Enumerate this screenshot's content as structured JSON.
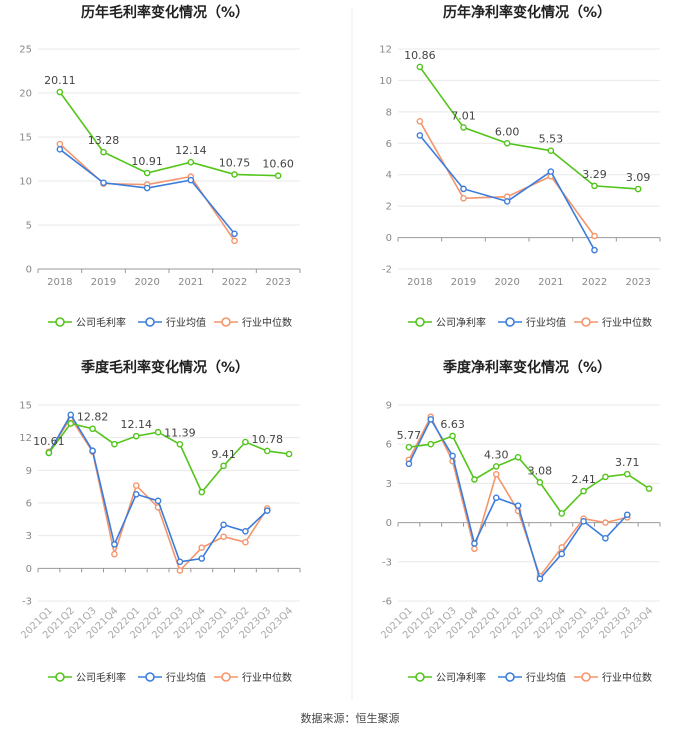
{
  "source_note": "数据来源：恒生聚源",
  "colors": {
    "company": "#52c41a",
    "industry_avg": "#3b7ddd",
    "industry_median": "#f4956c",
    "axis": "#888888",
    "grid": "#e8e8e8",
    "title": "#222222",
    "label": "#444444"
  },
  "chart_data": [
    {
      "type": "line",
      "title": "历年毛利率变化情况（%）",
      "categories": [
        "2018",
        "2019",
        "2020",
        "2021",
        "2022",
        "2023"
      ],
      "ylim": [
        0,
        25
      ],
      "yticks": [
        0,
        5,
        10,
        15,
        20,
        25
      ],
      "series": [
        {
          "name": "公司毛利率",
          "color_key": "company",
          "values": [
            20.11,
            13.28,
            10.91,
            12.14,
            10.75,
            10.6
          ],
          "data_labels": [
            "20.11",
            "13.28",
            "10.91",
            "12.14",
            "10.75",
            "10.60"
          ]
        },
        {
          "name": "行业均值",
          "color_key": "industry_avg",
          "values": [
            13.6,
            9.8,
            9.2,
            10.1,
            4.0,
            null
          ]
        },
        {
          "name": "行业中位数",
          "color_key": "industry_median",
          "values": [
            14.2,
            9.7,
            9.6,
            10.5,
            3.2,
            null
          ]
        }
      ]
    },
    {
      "type": "line",
      "title": "历年净利率变化情况（%）",
      "categories": [
        "2018",
        "2019",
        "2020",
        "2021",
        "2022",
        "2023"
      ],
      "ylim": [
        -2,
        12
      ],
      "yticks": [
        -2,
        0,
        2,
        4,
        6,
        8,
        10,
        12
      ],
      "series": [
        {
          "name": "公司净利率",
          "color_key": "company",
          "values": [
            10.86,
            7.01,
            6.0,
            5.53,
            3.29,
            3.09
          ],
          "data_labels": [
            "10.86",
            "7.01",
            "6.00",
            "5.53",
            "3.29",
            "3.09"
          ]
        },
        {
          "name": "行业均值",
          "color_key": "industry_avg",
          "values": [
            6.5,
            3.1,
            2.3,
            4.2,
            -0.8,
            null
          ]
        },
        {
          "name": "行业中位数",
          "color_key": "industry_median",
          "values": [
            7.4,
            2.5,
            2.6,
            3.9,
            0.1,
            null
          ]
        }
      ]
    },
    {
      "type": "line",
      "title": "季度毛利率变化情况（%）",
      "categories": [
        "2021Q1",
        "2021Q2",
        "2021Q3",
        "2021Q4",
        "2022Q1",
        "2022Q2",
        "2022Q3",
        "2022Q4",
        "2023Q1",
        "2023Q2",
        "2023Q3",
        "2023Q4"
      ],
      "ylim": [
        -3,
        15
      ],
      "yticks": [
        -3,
        0,
        3,
        6,
        9,
        12,
        15
      ],
      "series": [
        {
          "name": "公司毛利率",
          "color_key": "company",
          "values": [
            10.61,
            13.3,
            12.82,
            11.4,
            12.14,
            12.5,
            11.39,
            7.0,
            9.41,
            11.6,
            10.78,
            10.5
          ],
          "data_labels": [
            "10.61",
            null,
            "12.82",
            null,
            "12.14",
            null,
            "11.39",
            null,
            "9.41",
            null,
            "10.78",
            null
          ]
        },
        {
          "name": "行业均值",
          "color_key": "industry_avg",
          "values": [
            10.6,
            14.1,
            10.8,
            2.2,
            6.8,
            6.2,
            0.6,
            0.9,
            4.0,
            3.4,
            5.3,
            null
          ]
        },
        {
          "name": "行业中位数",
          "color_key": "industry_median",
          "values": [
            10.7,
            13.8,
            10.7,
            1.3,
            7.6,
            5.6,
            -0.2,
            1.9,
            2.9,
            2.4,
            5.5,
            null
          ]
        }
      ]
    },
    {
      "type": "line",
      "title": "季度净利率变化情况（%）",
      "categories": [
        "2021Q1",
        "2021Q2",
        "2021Q3",
        "2021Q4",
        "2022Q1",
        "2022Q2",
        "2022Q3",
        "2022Q4",
        "2023Q1",
        "2023Q2",
        "2023Q3",
        "2023Q4"
      ],
      "ylim": [
        -6,
        9
      ],
      "yticks": [
        -6,
        -3,
        0,
        3,
        6,
        9
      ],
      "series": [
        {
          "name": "公司净利率",
          "color_key": "company",
          "values": [
            5.77,
            6.0,
            6.63,
            3.3,
            4.3,
            5.0,
            3.08,
            0.7,
            2.41,
            3.5,
            3.71,
            2.6
          ],
          "data_labels": [
            "5.77",
            null,
            "6.63",
            null,
            "4.30",
            null,
            "3.08",
            null,
            "2.41",
            null,
            "3.71",
            null
          ]
        },
        {
          "name": "行业均值",
          "color_key": "industry_avg",
          "values": [
            4.5,
            7.9,
            5.1,
            -1.6,
            1.9,
            1.3,
            -4.3,
            -2.4,
            0.1,
            -1.2,
            0.6,
            null
          ]
        },
        {
          "name": "行业中位数",
          "color_key": "industry_median",
          "values": [
            4.8,
            8.1,
            4.7,
            -2.0,
            3.7,
            0.9,
            -4.1,
            -1.9,
            0.3,
            0.0,
            0.4,
            null
          ]
        }
      ]
    }
  ]
}
